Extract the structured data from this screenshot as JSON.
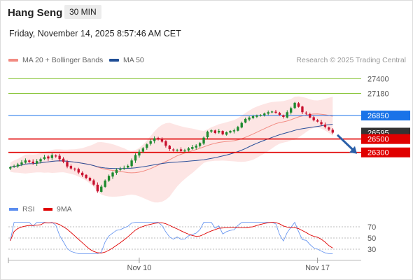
{
  "header": {
    "title": "Hang Seng",
    "timeframe": "30 MIN",
    "datetime": "Friday, November 14, 2025 8:57:46 AM CET"
  },
  "legend": {
    "items": [
      {
        "label": "MA 20 + Bollinger Bands",
        "color": "#f28b82"
      },
      {
        "label": "MA 50",
        "color": "#1f4e96"
      }
    ],
    "copyright": "Research © 2025 Trading Central"
  },
  "chart_data": {
    "type": "candlestick",
    "ylim": [
      25650,
      27550
    ],
    "levels": [
      {
        "value": 27400,
        "label": "27400",
        "kind": "resistance",
        "color": "#8cc63f"
      },
      {
        "value": 27180,
        "label": "27180",
        "kind": "resistance",
        "color": "#8cc63f"
      },
      {
        "value": 26850,
        "label": "26850",
        "kind": "pivot",
        "color": "#1a73e8"
      },
      {
        "value": 26500,
        "label": "26500",
        "kind": "support",
        "color": "#e00000"
      },
      {
        "value": 26300,
        "label": "26300",
        "kind": "support",
        "color": "#e00000"
      }
    ],
    "last_price": {
      "value": 26595,
      "label": "26595"
    },
    "close": [
      26080,
      26100,
      26120,
      26150,
      26180,
      26160,
      26140,
      26170,
      26200,
      26230,
      26210,
      26260,
      26240,
      26200,
      26160,
      26090,
      26060,
      26050,
      26000,
      25960,
      25920,
      25880,
      25820,
      25720,
      25790,
      25880,
      25950,
      26000,
      26040,
      26050,
      26070,
      26100,
      26180,
      26260,
      26310,
      26360,
      26420,
      26470,
      26510,
      26500,
      26460,
      26400,
      26350,
      26330,
      26340,
      26320,
      26330,
      26360,
      26380,
      26400,
      26440,
      26520,
      26610,
      26630,
      26590,
      26620,
      26570,
      26600,
      26620,
      26630,
      26680,
      26740,
      26800,
      26820,
      26840,
      26850,
      26860,
      26880,
      26900,
      26910,
      26890,
      26860,
      26830,
      26900,
      26960,
      27040,
      26980,
      26900,
      26880,
      26820,
      26780,
      26760,
      26720,
      26680,
      26640,
      26595
    ],
    "ma20_note": "MA 20 + Bollinger Bands",
    "indicator": {
      "ylim": [
        15,
        85
      ],
      "levels": [
        70,
        50,
        30
      ],
      "legend": [
        {
          "label": "RSI",
          "color": "#5b8def"
        },
        {
          "label": "9MA",
          "color": "#e00000"
        }
      ]
    },
    "x_labels": [
      {
        "index": 34,
        "label": "Nov 10"
      },
      {
        "index": 81,
        "label": "Nov 17"
      }
    ]
  }
}
